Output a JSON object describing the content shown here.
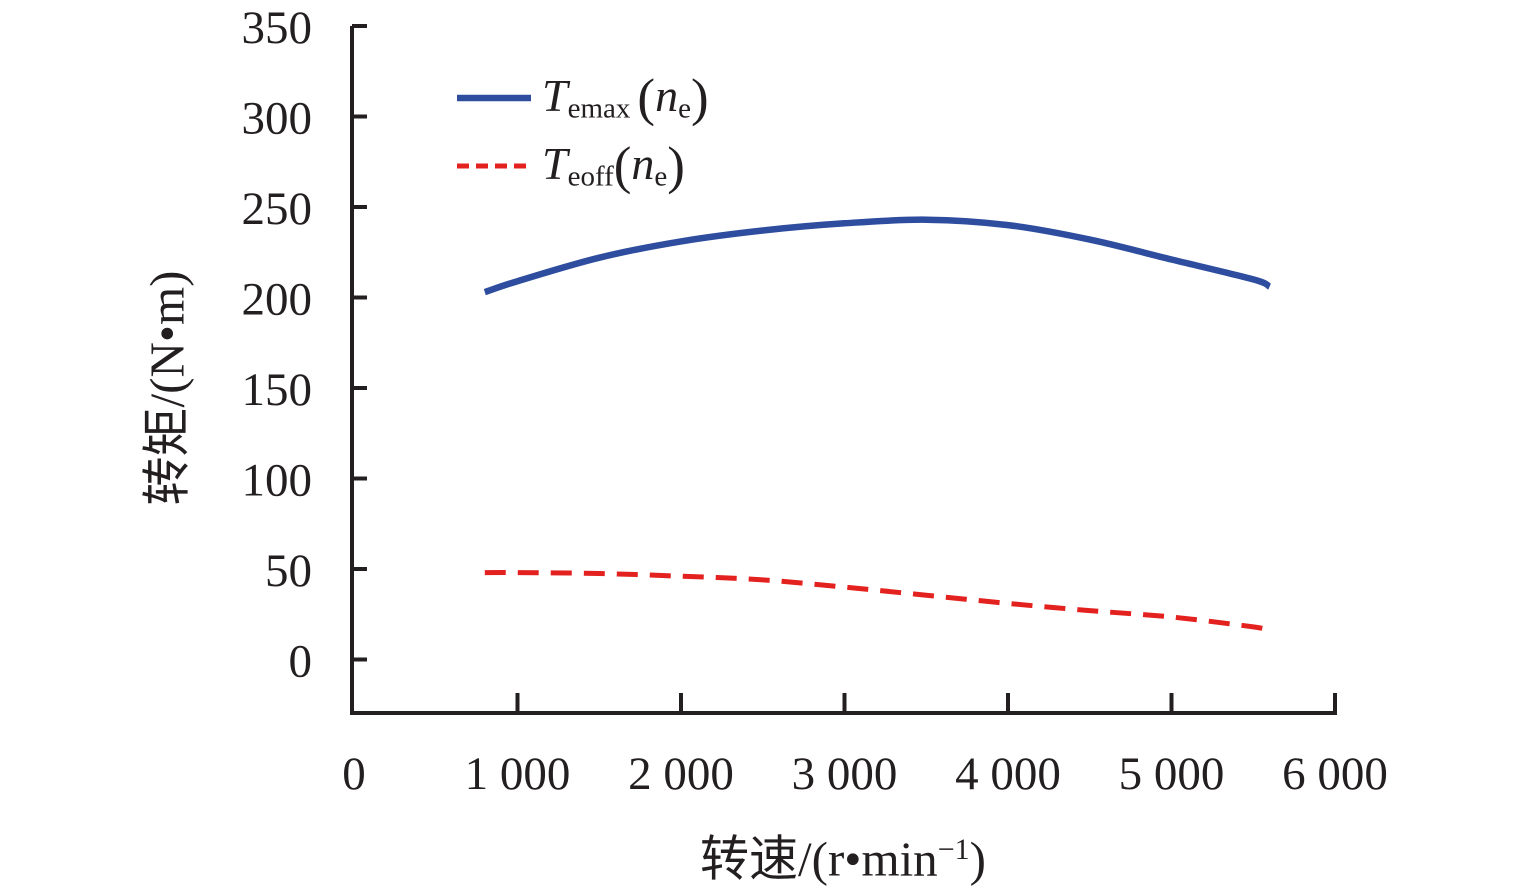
{
  "chart_data": {
    "type": "line",
    "title": "",
    "xlabel": "转速/(r•min⁻¹)",
    "xlabel_parts": {
      "prefix": "转速/(r•min",
      "sup": "−1",
      "close": ")"
    },
    "ylabel": "转矩/(N•m)",
    "xlim": [
      0,
      6000
    ],
    "ylim": [
      0,
      350
    ],
    "x_ticks": [
      0,
      1000,
      2000,
      3000,
      4000,
      5000,
      6000
    ],
    "x_tick_labels": [
      "0",
      "1 000",
      "2 000",
      "3 000",
      "4 000",
      "5 000",
      "6 000"
    ],
    "y_ticks": [
      0,
      50,
      100,
      150,
      200,
      250,
      300,
      350
    ],
    "y_tick_labels": [
      "0",
      "50",
      "100",
      "150",
      "200",
      "250",
      "300",
      "350"
    ],
    "grid": false,
    "legend_position": "top-left-inside",
    "series": [
      {
        "name": "T_emax(n_e)",
        "label_parts": {
          "symbol": "T",
          "sub": "emax",
          "open": "(",
          "arg": "n",
          "argsub": "e",
          "close": ")"
        },
        "color": "#2e4d9f",
        "style": "solid",
        "x": [
          800,
          1000,
          1500,
          2000,
          2500,
          3000,
          3500,
          4000,
          4500,
          5000,
          5500,
          5600
        ],
        "y": [
          203,
          209,
          222,
          231,
          237,
          241,
          243,
          240,
          232,
          221,
          210,
          206
        ]
      },
      {
        "name": "T_eoff(n_e)",
        "label_parts": {
          "symbol": "T",
          "sub": "eoff",
          "open": "(",
          "arg": "n",
          "argsub": "e",
          "close": ")"
        },
        "color": "#e3211f",
        "style": "dashed",
        "x": [
          800,
          1000,
          1500,
          2000,
          2500,
          3000,
          3500,
          4000,
          4500,
          5000,
          5500,
          5600
        ],
        "y": [
          48,
          48,
          47.5,
          46,
          44,
          40,
          35.5,
          31,
          27,
          23.5,
          18,
          16
        ]
      }
    ]
  },
  "colors": {
    "axis": "#231f20",
    "background": "#ffffff",
    "series_blue": "#2e4d9f",
    "series_red": "#e3211f"
  }
}
